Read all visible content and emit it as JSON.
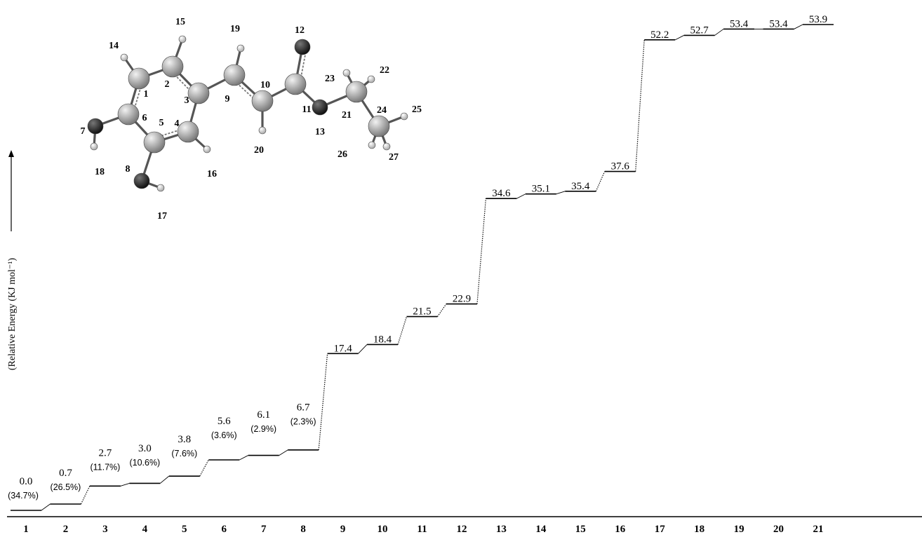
{
  "chart_data": {
    "type": "line",
    "title": "",
    "xlabel": "",
    "ylabel": "(Relative Energy (KJ mol⁻¹)",
    "categories": [
      "1",
      "2",
      "3",
      "4",
      "5",
      "6",
      "7",
      "8",
      "9",
      "10",
      "11",
      "12",
      "13",
      "14",
      "15",
      "16",
      "17",
      "18",
      "19",
      "20",
      "21"
    ],
    "values": [
      0.0,
      0.7,
      2.7,
      3.0,
      3.8,
      5.6,
      6.1,
      6.7,
      17.4,
      18.4,
      21.5,
      22.9,
      34.6,
      35.1,
      35.4,
      37.6,
      52.2,
      52.7,
      53.4,
      53.4,
      53.9
    ],
    "value_labels": [
      "0.0",
      "0.7",
      "2.7",
      "3.0",
      "3.8",
      "5.6",
      "6.1",
      "6.7",
      "17.4",
      "18.4",
      "21.5",
      "22.9",
      "34.6",
      "35.1",
      "35.4",
      "37.6",
      "52.2",
      "52.7",
      "53.4",
      "53.4",
      "53.9"
    ],
    "populations": [
      "(34.7%)",
      "(26.5%)",
      "(11.7%)",
      "(10.6%)",
      "(7.6%)",
      "(3.6%)",
      "(2.9%)",
      "(2.3%)"
    ],
    "ylim": [
      0,
      56
    ],
    "grid": false,
    "legend": "none"
  },
  "molecule": {
    "atom_labels": [
      "1",
      "2",
      "3",
      "4",
      "5",
      "6",
      "7",
      "8",
      "9",
      "10",
      "11",
      "12",
      "13",
      "14",
      "15",
      "16",
      "17",
      "18",
      "19",
      "20",
      "21",
      "22",
      "23",
      "24",
      "25",
      "26",
      "27"
    ]
  }
}
